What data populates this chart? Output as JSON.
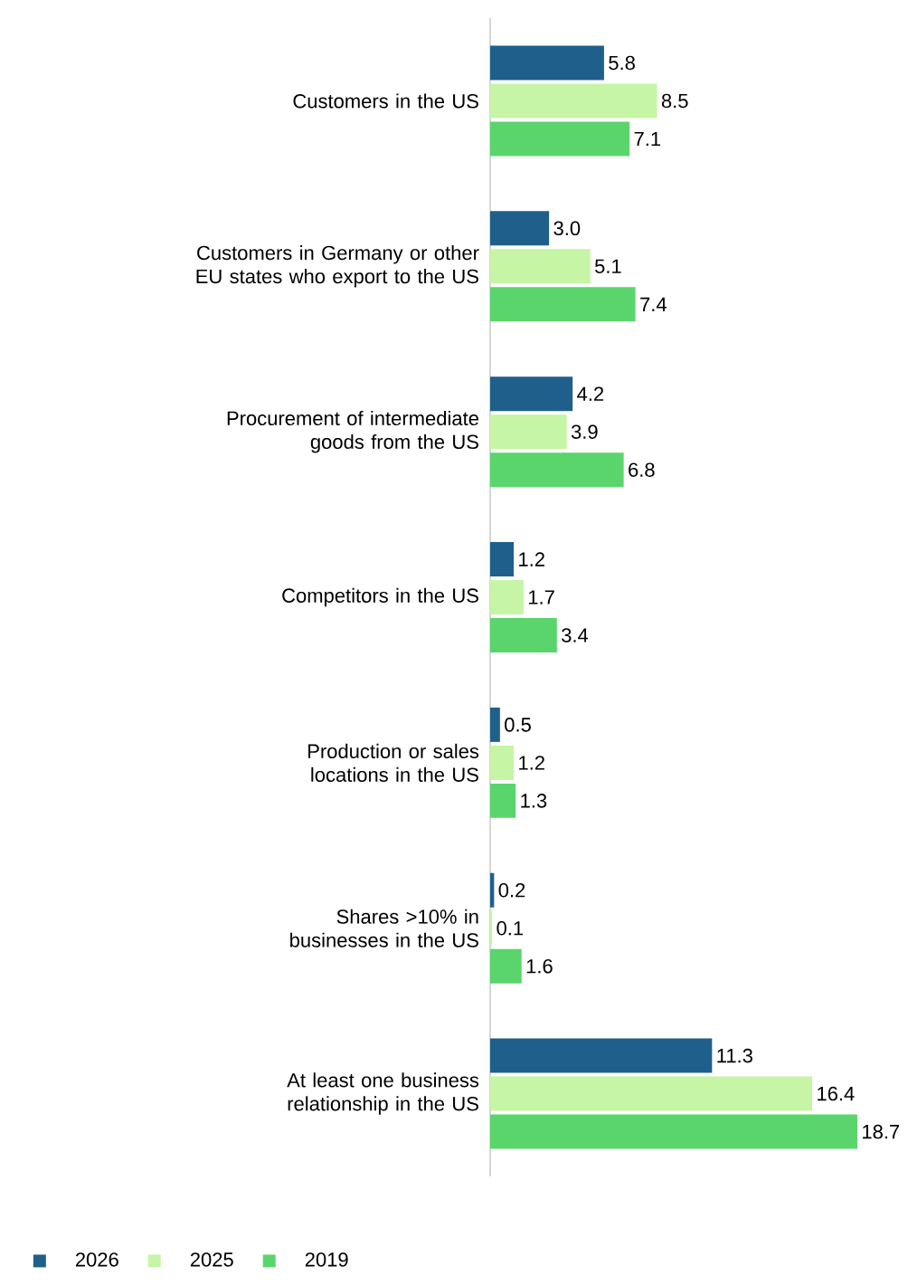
{
  "chart_data": {
    "type": "bar",
    "orientation": "horizontal",
    "legend": "bottom",
    "categories": [
      "Customers in the US",
      "Customers in Germany or other EU states who export to the US",
      "Procurement of intermediate goods from the US",
      "Competitors in the US",
      "Production or sales locations in the US",
      "Shares >10% in businesses in the US",
      "At least one business relationship in the US"
    ],
    "series": [
      {
        "name": "2026",
        "color": "#1f5f8b",
        "values": [
          5.8,
          3.0,
          4.2,
          1.2,
          0.5,
          0.2,
          11.3
        ],
        "value_labels": [
          "5.8",
          "3.0",
          "4.2",
          "1.2",
          "0.5",
          "0.2",
          "11.3"
        ]
      },
      {
        "name": "2025",
        "color": "#c5f5a5",
        "values": [
          8.5,
          5.1,
          3.9,
          1.7,
          1.2,
          0.1,
          16.4
        ],
        "value_labels": [
          "8.5",
          "5.1",
          "3.9",
          "1.7",
          "1.2",
          "0.1",
          "16.4"
        ]
      },
      {
        "name": "2019",
        "color": "#5ad56c",
        "values": [
          7.1,
          7.4,
          6.8,
          3.4,
          1.3,
          1.6,
          18.7
        ],
        "value_labels": [
          "7.1",
          "7.4",
          "6.8",
          "3.4",
          "1.3",
          "1.6",
          "18.7"
        ]
      }
    ]
  }
}
